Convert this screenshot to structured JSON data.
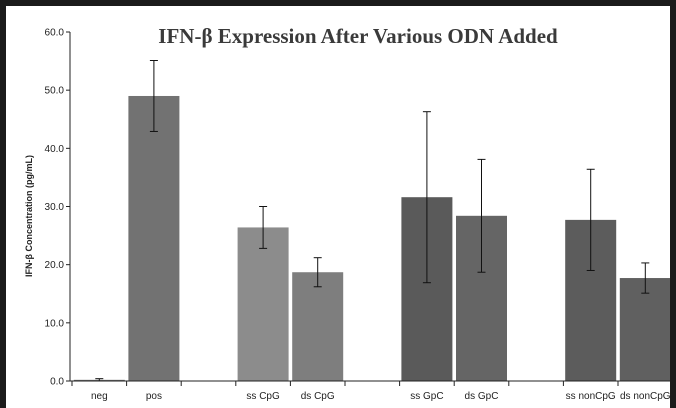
{
  "chart_data": {
    "type": "bar",
    "title": "IFN-β Expression After Various ODN Added",
    "xlabel": "",
    "ylabel": "IFN-β Concentration (pg/mL)",
    "ylim": [
      0,
      60
    ],
    "yticks": [
      "0.0",
      "10.0",
      "20.0",
      "30.0",
      "40.0",
      "50.0",
      "60.0"
    ],
    "grid": false,
    "legend": "none",
    "categories": [
      "neg",
      "pos",
      "",
      "ss CpG",
      "ds CpG",
      "",
      "ss GpC",
      "ds GpC",
      "",
      "ss nonCpG",
      "ds nonCpG"
    ],
    "values": [
      0.2,
      49.0,
      null,
      26.4,
      18.7,
      null,
      31.6,
      28.4,
      null,
      27.7,
      17.7
    ],
    "error": [
      0.2,
      6.1,
      null,
      3.6,
      2.5,
      null,
      14.7,
      9.7,
      null,
      8.7,
      2.6
    ],
    "colors": [
      "#6e6e6e",
      "#727272",
      null,
      "#8c8c8c",
      "#7e7e7e",
      null,
      "#5a5a5a",
      "#656565",
      null,
      "#5c5c5c",
      "#606060"
    ]
  }
}
